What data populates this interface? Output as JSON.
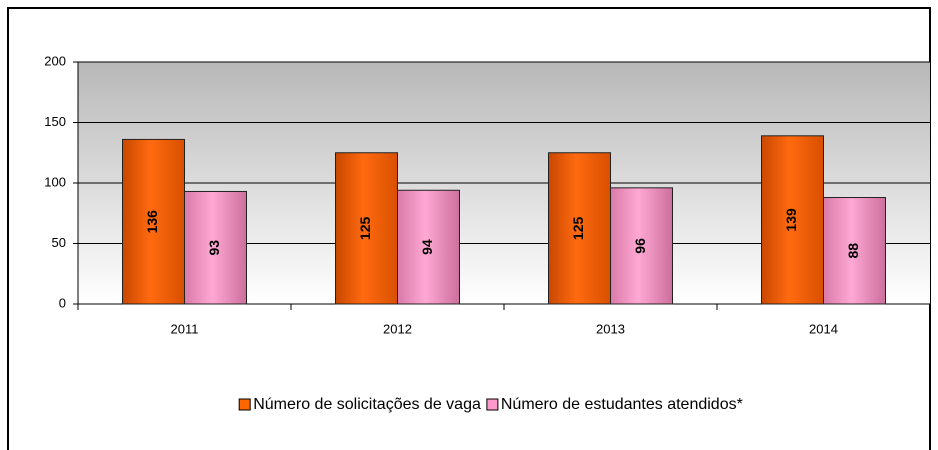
{
  "chart_data": {
    "type": "bar",
    "categories": [
      "2011",
      "2012",
      "2013",
      "2014"
    ],
    "series": [
      {
        "name": "Número de solicitações de vaga",
        "color": "#ff6600",
        "values": [
          136,
          125,
          125,
          139
        ]
      },
      {
        "name": "Número de estudantes atendidos*",
        "color": "#ff99cc",
        "values": [
          93,
          94,
          96,
          88
        ]
      }
    ],
    "ylim": [
      0,
      200
    ],
    "yticks": [
      0,
      50,
      100,
      150,
      200
    ],
    "grid": true,
    "legend": "bottom"
  }
}
